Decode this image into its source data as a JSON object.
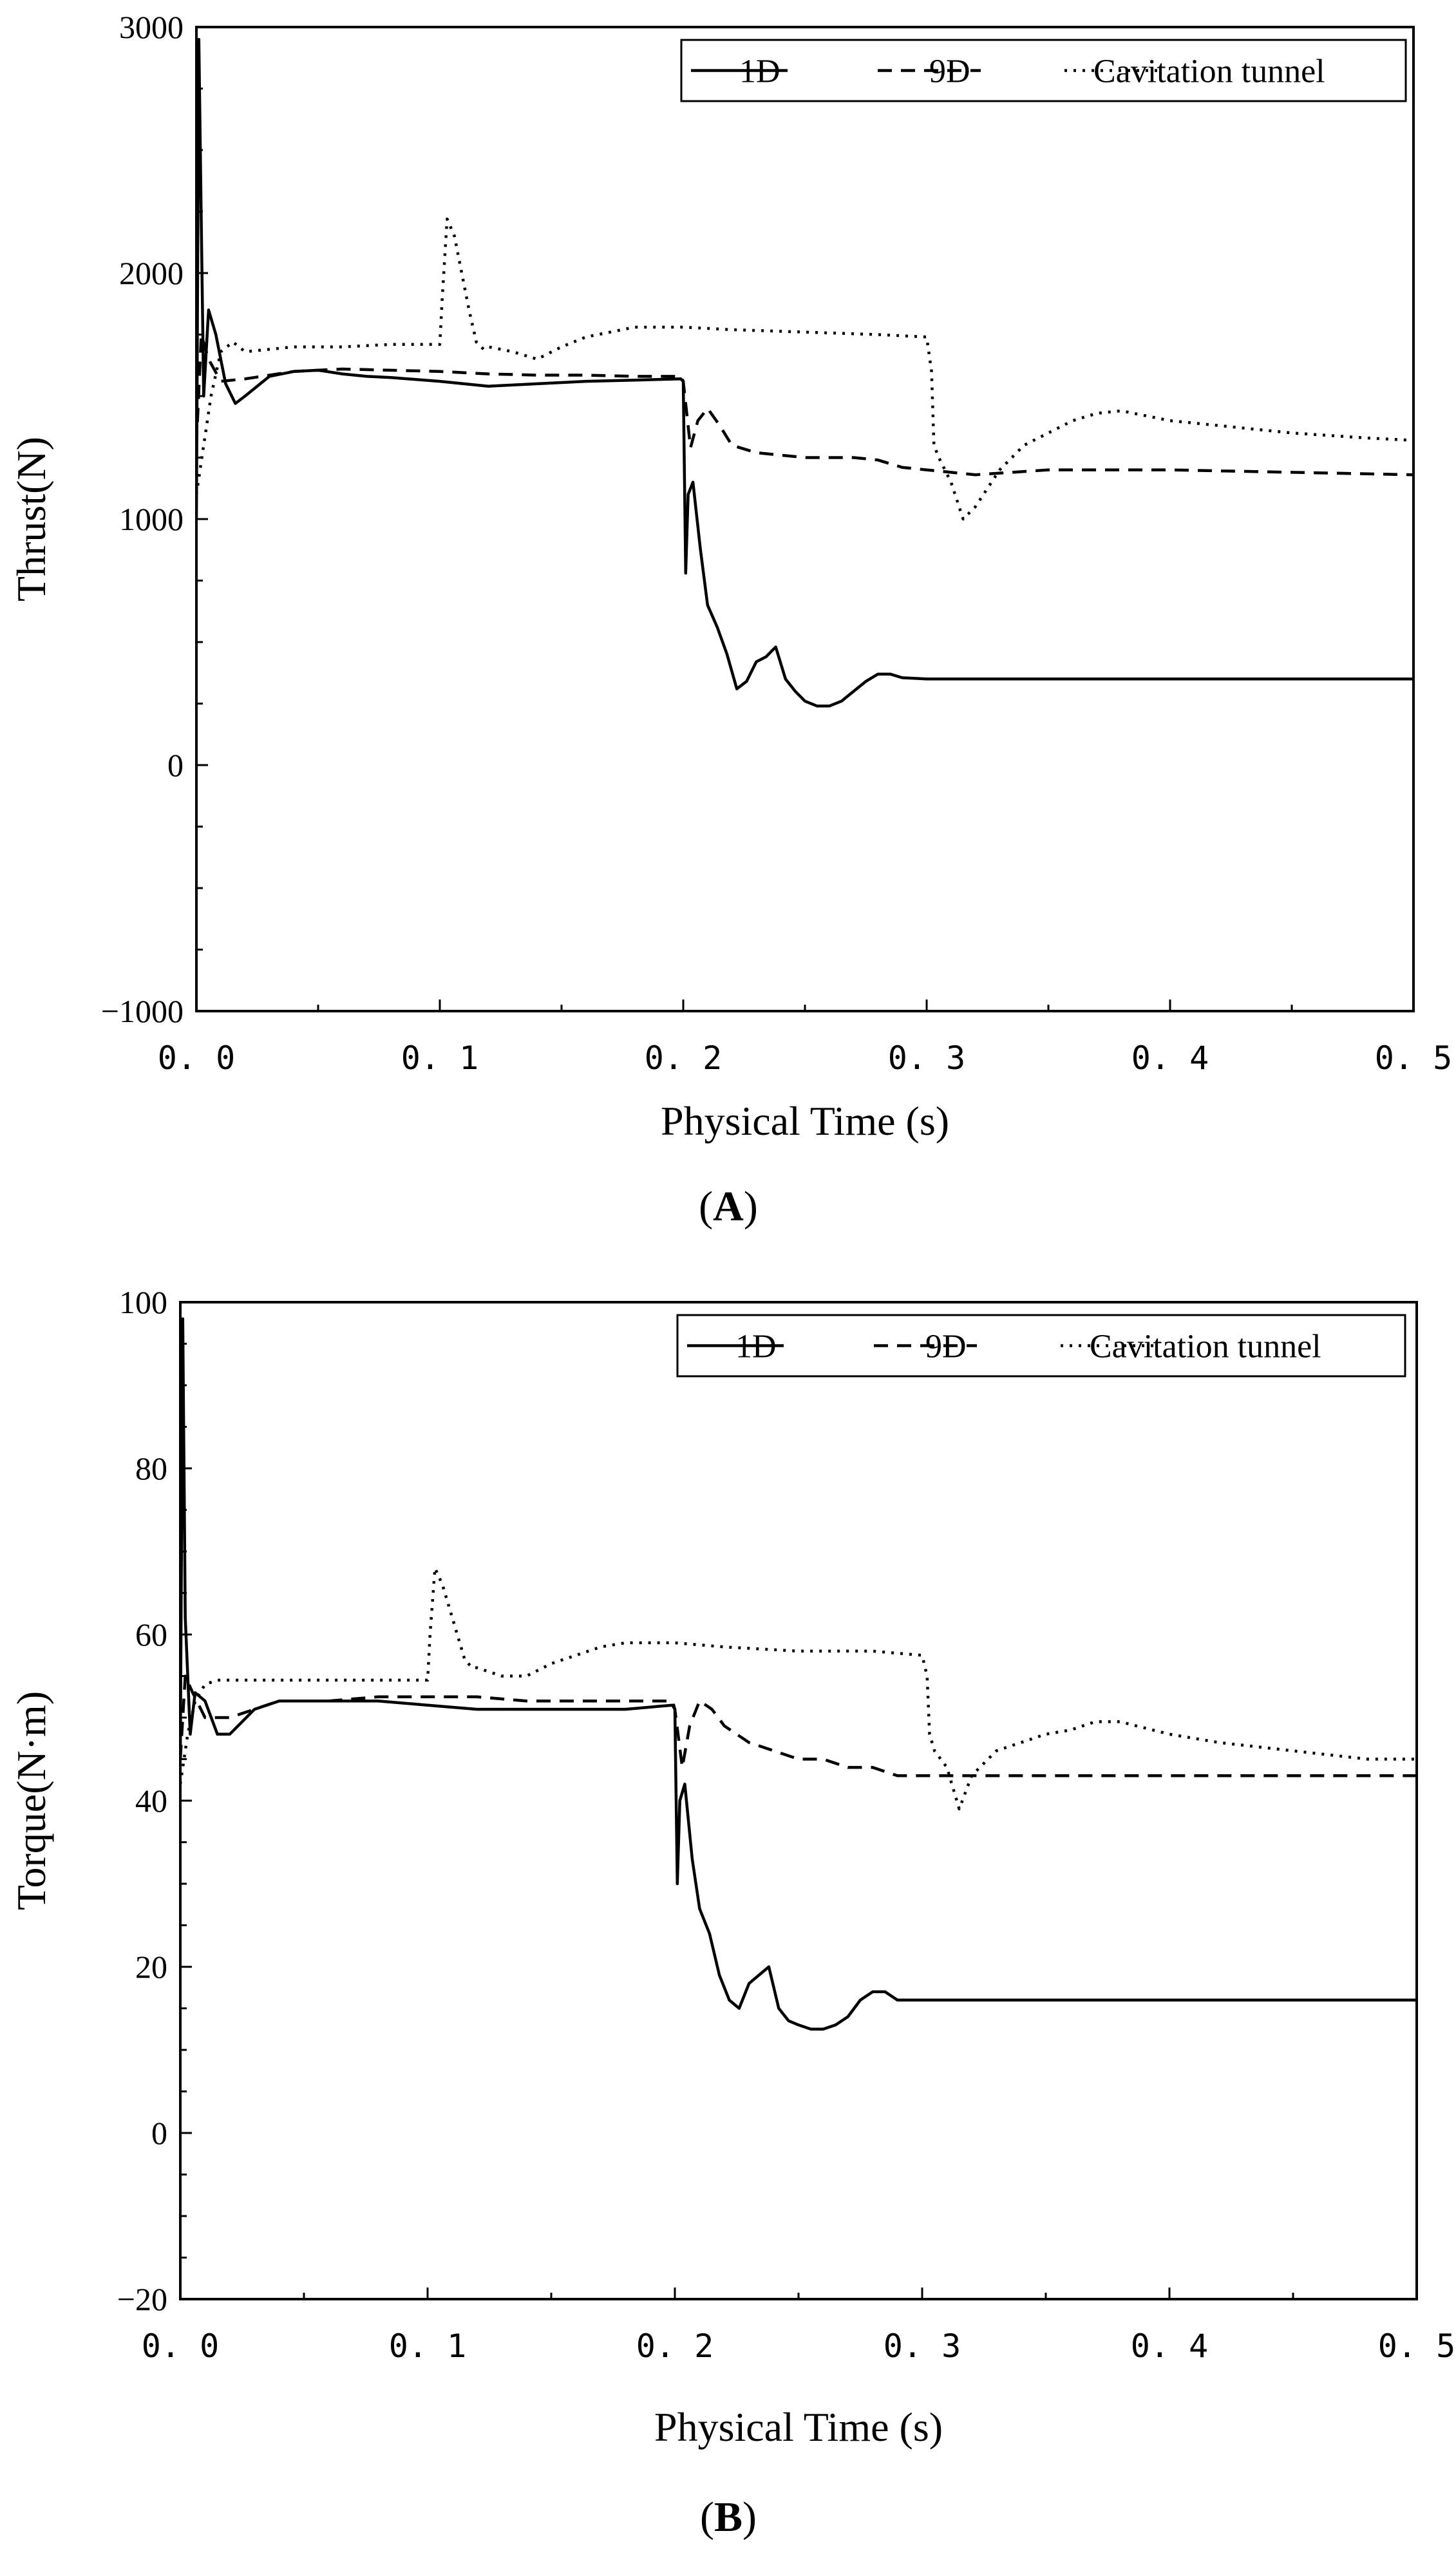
{
  "chart_data": [
    {
      "type": "line",
      "panel_label": "(A)",
      "panel_letter": "A",
      "title": "",
      "xlabel": "Physical Time (s)",
      "ylabel": "Thrust(N)",
      "xlim": [
        0.0,
        0.5
      ],
      "ylim": [
        -1000,
        3000
      ],
      "x_tick_labels": [
        "0. 0",
        "0. 1",
        "0. 2",
        "0. 3",
        "0. 4",
        "0. 5"
      ],
      "x_tick_values": [
        0.0,
        0.1,
        0.2,
        0.3,
        0.4,
        0.5
      ],
      "y_tick_labels": [
        "−1000",
        "0",
        "1000",
        "2000",
        "3000"
      ],
      "y_tick_values": [
        -1000,
        0,
        1000,
        2000,
        3000
      ],
      "grid": false,
      "legend_position": "top-right",
      "series": [
        {
          "name": "1D",
          "dash": "solid",
          "x": [
            0.0,
            0.001,
            0.002,
            0.003,
            0.005,
            0.008,
            0.012,
            0.016,
            0.02,
            0.03,
            0.04,
            0.05,
            0.06,
            0.07,
            0.08,
            0.1,
            0.12,
            0.14,
            0.16,
            0.18,
            0.199,
            0.2,
            0.201,
            0.202,
            0.204,
            0.207,
            0.21,
            0.214,
            0.218,
            0.222,
            0.226,
            0.23,
            0.234,
            0.238,
            0.242,
            0.246,
            0.25,
            0.255,
            0.26,
            0.265,
            0.27,
            0.275,
            0.28,
            0.285,
            0.29,
            0.3,
            0.35,
            0.4,
            0.45,
            0.5
          ],
          "values": [
            1000,
            2950,
            2200,
            1500,
            1850,
            1750,
            1550,
            1470,
            1500,
            1580,
            1600,
            1605,
            1590,
            1580,
            1575,
            1560,
            1540,
            1550,
            1560,
            1565,
            1570,
            1560,
            780,
            1100,
            1150,
            880,
            650,
            560,
            450,
            310,
            340,
            420,
            440,
            480,
            350,
            300,
            260,
            240,
            240,
            260,
            300,
            340,
            370,
            370,
            355,
            350,
            350,
            350,
            350,
            350
          ]
        },
        {
          "name": "9D",
          "dash": "dashed",
          "x": [
            0.0,
            0.002,
            0.005,
            0.01,
            0.02,
            0.04,
            0.06,
            0.08,
            0.1,
            0.12,
            0.14,
            0.16,
            0.18,
            0.199,
            0.2,
            0.203,
            0.206,
            0.21,
            0.215,
            0.22,
            0.23,
            0.24,
            0.25,
            0.26,
            0.27,
            0.28,
            0.29,
            0.3,
            0.32,
            0.35,
            0.4,
            0.45,
            0.5
          ],
          "values": [
            1300,
            1750,
            1650,
            1560,
            1570,
            1600,
            1610,
            1605,
            1600,
            1590,
            1585,
            1585,
            1580,
            1580,
            1560,
            1290,
            1400,
            1450,
            1380,
            1300,
            1270,
            1260,
            1250,
            1250,
            1250,
            1240,
            1210,
            1200,
            1180,
            1200,
            1200,
            1190,
            1180
          ]
        },
        {
          "name": "Cavitation tunnel",
          "dash": "dotted",
          "x": [
            0.0,
            0.003,
            0.006,
            0.01,
            0.015,
            0.02,
            0.04,
            0.06,
            0.08,
            0.1,
            0.101,
            0.103,
            0.106,
            0.109,
            0.112,
            0.115,
            0.118,
            0.12,
            0.13,
            0.14,
            0.15,
            0.16,
            0.17,
            0.18,
            0.2,
            0.22,
            0.25,
            0.28,
            0.3,
            0.302,
            0.303,
            0.305,
            0.31,
            0.315,
            0.32,
            0.33,
            0.34,
            0.35,
            0.36,
            0.37,
            0.38,
            0.4,
            0.42,
            0.45,
            0.48,
            0.5
          ],
          "values": [
            1100,
            1300,
            1500,
            1680,
            1720,
            1680,
            1700,
            1700,
            1710,
            1710,
            1900,
            2220,
            2150,
            2000,
            1850,
            1720,
            1690,
            1700,
            1680,
            1650,
            1700,
            1740,
            1760,
            1780,
            1780,
            1770,
            1760,
            1750,
            1740,
            1600,
            1300,
            1250,
            1150,
            1000,
            1050,
            1200,
            1300,
            1350,
            1400,
            1430,
            1440,
            1400,
            1380,
            1350,
            1330,
            1320
          ]
        }
      ]
    },
    {
      "type": "line",
      "panel_label": "(B)",
      "panel_letter": "B",
      "title": "",
      "xlabel": "Physical Time (s)",
      "ylabel": "Torque(N·m)",
      "xlim": [
        0.0,
        0.5
      ],
      "ylim": [
        -20,
        100
      ],
      "x_tick_labels": [
        "0. 0",
        "0. 1",
        "0. 2",
        "0. 3",
        "0. 4",
        "0. 5"
      ],
      "x_tick_values": [
        0.0,
        0.1,
        0.2,
        0.3,
        0.4,
        0.5
      ],
      "y_tick_labels": [
        "−20",
        "0",
        "20",
        "40",
        "60",
        "80",
        "100"
      ],
      "y_tick_values": [
        -20,
        0,
        20,
        40,
        60,
        80,
        100
      ],
      "grid": false,
      "legend_position": "top-right",
      "series": [
        {
          "name": "1D",
          "dash": "solid",
          "x": [
            0.0,
            0.001,
            0.002,
            0.004,
            0.006,
            0.01,
            0.015,
            0.02,
            0.03,
            0.04,
            0.05,
            0.06,
            0.08,
            0.1,
            0.12,
            0.14,
            0.16,
            0.18,
            0.199,
            0.2,
            0.201,
            0.202,
            0.204,
            0.207,
            0.21,
            0.214,
            0.218,
            0.222,
            0.226,
            0.23,
            0.234,
            0.238,
            0.242,
            0.246,
            0.25,
            0.255,
            0.26,
            0.265,
            0.27,
            0.275,
            0.28,
            0.285,
            0.29,
            0.3,
            0.35,
            0.4,
            0.45,
            0.5
          ],
          "values": [
            45,
            98,
            62,
            48,
            53,
            52,
            48,
            48,
            51,
            52,
            52,
            52,
            52,
            51.5,
            51,
            51,
            51,
            51,
            51.5,
            51,
            30,
            40,
            42,
            33,
            27,
            24,
            19,
            16,
            15,
            18,
            19,
            20,
            15,
            13.5,
            13,
            12.5,
            12.5,
            13,
            14,
            16,
            17,
            17,
            16,
            16,
            16,
            16,
            16,
            16
          ]
        },
        {
          "name": "9D",
          "dash": "dashed",
          "x": [
            0.0,
            0.002,
            0.005,
            0.01,
            0.02,
            0.04,
            0.06,
            0.08,
            0.1,
            0.12,
            0.14,
            0.16,
            0.18,
            0.199,
            0.2,
            0.203,
            0.206,
            0.21,
            0.215,
            0.22,
            0.23,
            0.24,
            0.25,
            0.26,
            0.27,
            0.28,
            0.29,
            0.3,
            0.32,
            0.35,
            0.4,
            0.45,
            0.5
          ],
          "values": [
            45,
            55,
            53,
            50,
            50,
            52,
            52,
            52.5,
            52.5,
            52.5,
            52,
            52,
            52,
            52,
            51,
            44,
            49,
            52,
            51,
            49,
            47,
            46,
            45,
            45,
            44,
            44,
            43,
            43,
            43,
            43,
            43,
            43,
            43
          ]
        },
        {
          "name": "Cavitation tunnel",
          "dash": "dotted",
          "x": [
            0.0,
            0.003,
            0.006,
            0.01,
            0.015,
            0.02,
            0.04,
            0.06,
            0.08,
            0.1,
            0.101,
            0.103,
            0.106,
            0.109,
            0.112,
            0.115,
            0.118,
            0.12,
            0.13,
            0.14,
            0.15,
            0.16,
            0.17,
            0.18,
            0.2,
            0.22,
            0.25,
            0.28,
            0.3,
            0.302,
            0.303,
            0.305,
            0.31,
            0.315,
            0.32,
            0.33,
            0.34,
            0.35,
            0.36,
            0.37,
            0.38,
            0.4,
            0.42,
            0.45,
            0.48,
            0.5
          ],
          "values": [
            42,
            48,
            52,
            54,
            54.5,
            54.5,
            54.5,
            54.5,
            54.5,
            54.5,
            60,
            68,
            66,
            63,
            60,
            57,
            56,
            56,
            55,
            55,
            56.5,
            57.5,
            58.5,
            59,
            59,
            58.5,
            58,
            58,
            57.5,
            55,
            48,
            46,
            44,
            39,
            43,
            46,
            47,
            48,
            48.5,
            49.5,
            49.5,
            48,
            47,
            46,
            45,
            45
          ]
        }
      ]
    }
  ]
}
